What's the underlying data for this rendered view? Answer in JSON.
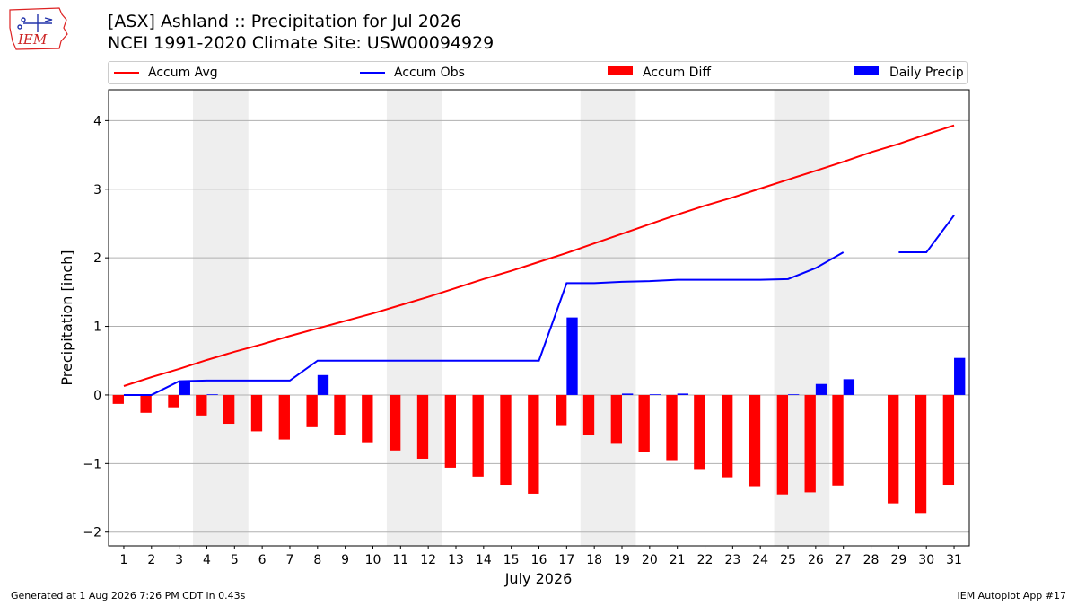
{
  "header": {
    "title_line1": "[ASX] Ashland :: Precipitation for Jul 2026",
    "title_line2": "NCEI 1991-2020 Climate Site: USW00094929",
    "logo_text": "IEM"
  },
  "footer": {
    "generated": "Generated at 1 Aug 2026 7:26 PM CDT in 0.43s",
    "app": "IEM Autoplot App #17"
  },
  "colors": {
    "avg": "#ff0000",
    "obs": "#0000ff",
    "diff": "#ff0000",
    "daily": "#0000ff",
    "weekend_band": "#eeeeee",
    "grid": "#b0b0b0"
  },
  "chart_data": {
    "type": "bar",
    "xlabel": "July 2026",
    "ylabel": "Precipitation [inch]",
    "ylim": [
      -2.2,
      4.45
    ],
    "yticks": [
      -2,
      -1,
      0,
      1,
      2,
      3,
      4
    ],
    "ytick_labels": [
      "−2",
      "−1",
      "0",
      "1",
      "2",
      "3",
      "4"
    ],
    "grid": "horizontal",
    "legend_position": "top",
    "legend": [
      "Accum Avg",
      "Accum Obs",
      "Accum Diff",
      "Daily Precip"
    ],
    "days": [
      1,
      2,
      3,
      4,
      5,
      6,
      7,
      8,
      9,
      10,
      11,
      12,
      13,
      14,
      15,
      16,
      17,
      18,
      19,
      20,
      21,
      22,
      23,
      24,
      25,
      26,
      27,
      28,
      29,
      30,
      31
    ],
    "shaded_day_ranges": [
      [
        4,
        5
      ],
      [
        11,
        12
      ],
      [
        18,
        19
      ],
      [
        25,
        26
      ]
    ],
    "series": [
      {
        "name": "Accum Avg",
        "type": "line",
        "values": [
          0.13,
          0.26,
          0.38,
          0.51,
          0.63,
          0.74,
          0.86,
          0.97,
          1.08,
          1.19,
          1.31,
          1.43,
          1.56,
          1.69,
          1.81,
          1.94,
          2.07,
          2.21,
          2.35,
          2.49,
          2.63,
          2.76,
          2.88,
          3.01,
          3.14,
          3.27,
          3.4,
          3.54,
          3.66,
          3.8,
          3.93
        ]
      },
      {
        "name": "Accum Obs",
        "type": "line",
        "values": [
          0.0,
          0.0,
          0.2,
          0.21,
          0.21,
          0.21,
          0.21,
          0.5,
          0.5,
          0.5,
          0.5,
          0.5,
          0.5,
          0.5,
          0.5,
          0.5,
          1.63,
          1.63,
          1.65,
          1.66,
          1.68,
          1.68,
          1.68,
          1.68,
          1.69,
          1.85,
          2.08,
          null,
          2.08,
          2.08,
          2.62
        ]
      },
      {
        "name": "Accum Diff",
        "type": "bar",
        "values": [
          -0.13,
          -0.26,
          -0.18,
          -0.3,
          -0.42,
          -0.53,
          -0.65,
          -0.47,
          -0.58,
          -0.69,
          -0.81,
          -0.93,
          -1.06,
          -1.19,
          -1.31,
          -1.44,
          -0.44,
          -0.58,
          -0.7,
          -0.83,
          -0.95,
          -1.08,
          -1.2,
          -1.33,
          -1.45,
          -1.42,
          -1.32,
          null,
          -1.58,
          -1.72,
          -1.31
        ]
      },
      {
        "name": "Daily Precip",
        "type": "bar",
        "values": [
          0.0,
          0.0,
          0.2,
          0.01,
          0.0,
          0.0,
          0.0,
          0.29,
          0.0,
          0.0,
          0.0,
          0.0,
          0.0,
          0.0,
          0.0,
          0.0,
          1.13,
          0.0,
          0.02,
          0.01,
          0.02,
          0.0,
          0.0,
          0.0,
          0.01,
          0.16,
          0.23,
          null,
          0.0,
          0.0,
          0.54
        ]
      }
    ]
  }
}
